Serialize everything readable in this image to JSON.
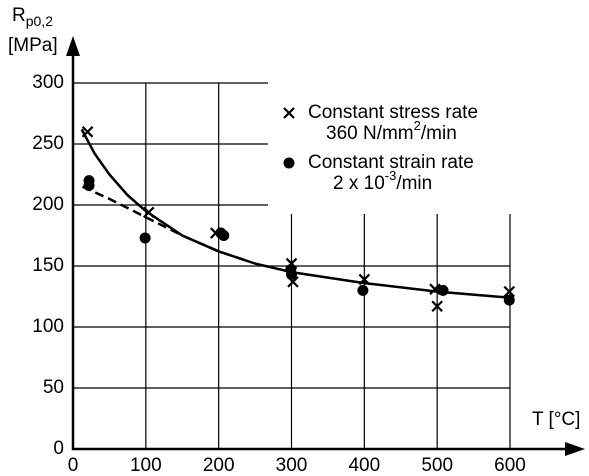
{
  "chart_data": {
    "type": "scatter",
    "ylabel": {
      "symbol": "R",
      "subscript": "p0,2",
      "unit": "[MPa]"
    },
    "xlabel": "T [°C]",
    "xlim": [
      0,
      600
    ],
    "ylim": [
      0,
      300
    ],
    "xticks": [
      0,
      100,
      200,
      300,
      400,
      500,
      600
    ],
    "yticks": [
      0,
      50,
      100,
      150,
      200,
      250,
      300
    ],
    "grid": true,
    "legend": "upper right",
    "series": [
      {
        "name": "Constant stress rate",
        "rate": [
          "360 N/mm",
          "2",
          "/min"
        ],
        "marker": "x",
        "color": "#000000",
        "x": [
          20,
          104,
          196,
          300,
          302,
          400,
          497,
          500,
          599
        ],
        "values": [
          260,
          194,
          177,
          152,
          137,
          139,
          131,
          117,
          129
        ]
      },
      {
        "name": "Constant strain rate",
        "rate": [
          "2 x 10",
          "-3",
          "/min"
        ],
        "marker": "o",
        "color": "#000000",
        "x": [
          22,
          22,
          99,
          203,
          207,
          299,
          300,
          398,
          508,
          599
        ],
        "values": [
          220,
          216,
          173,
          177,
          175,
          147,
          143,
          130,
          130,
          122
        ]
      }
    ],
    "curves": [
      {
        "style": "solid",
        "color": "#000000",
        "x": [
          12,
          30,
          50,
          75,
          100,
          150,
          200,
          250,
          300,
          400,
          500,
          600
        ],
        "values": [
          262,
          242,
          225,
          208,
          195,
          175,
          162,
          152,
          145,
          136,
          129,
          124
        ]
      },
      {
        "style": "dashed",
        "color": "#000000",
        "x": [
          13,
          50,
          100,
          150,
          200,
          240
        ],
        "values": [
          215,
          205,
          190,
          175,
          162,
          154
        ]
      }
    ]
  }
}
